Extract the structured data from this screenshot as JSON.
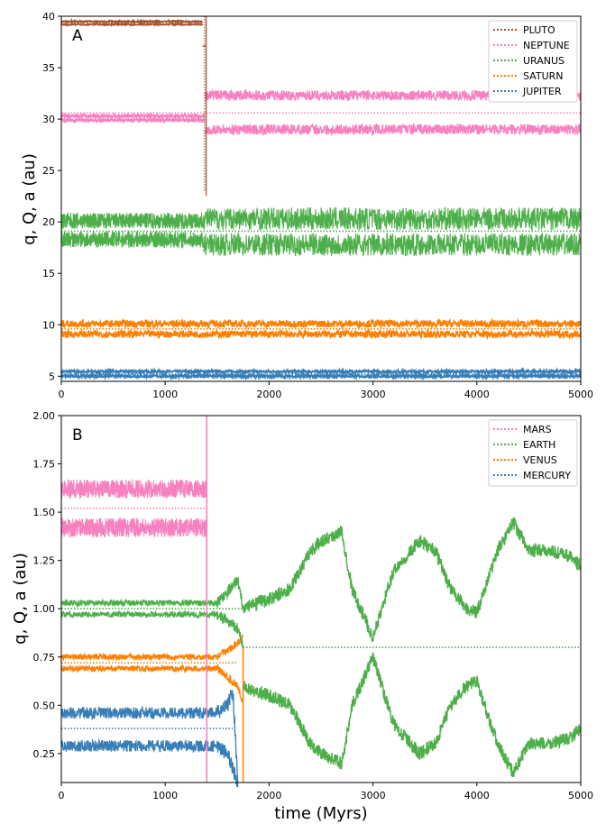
{
  "colors": {
    "pluto": "#a0522d",
    "neptune": "#f781bf",
    "uranus": "#4daf4a",
    "saturn": "#ff7f00",
    "jupiter": "#377eb8",
    "mars": "#f781bf",
    "earth": "#4daf4a",
    "venus": "#ff7f00",
    "mercury": "#377eb8"
  },
  "chart_data": [
    {
      "type": "line",
      "panel_label": "A",
      "xlabel": "",
      "ylabel": "q, Q, a (au)",
      "xlim": [
        0,
        5000
      ],
      "ylim": [
        4.5,
        40
      ],
      "xticks": [
        "0",
        "1000",
        "2000",
        "3000",
        "4000",
        "5000"
      ],
      "yticks": [
        "5",
        "10",
        "15",
        "20",
        "25",
        "30",
        "35",
        "40"
      ],
      "legend_position": "top-right",
      "legend": [
        "PLUTO",
        "NEPTUNE",
        "URANUS",
        "SATURN",
        "JUPITER"
      ],
      "series": [
        {
          "name": "PLUTO",
          "color_key": "pluto",
          "a": 39.4,
          "q_before": 39.2,
          "Q_before": 39.5,
          "ejected_at": 1420,
          "drop_to": 37.1,
          "drop_at": 1360
        },
        {
          "name": "NEPTUNE",
          "color_key": "neptune",
          "a": 30.6,
          "q_before": 29.9,
          "Q_before": 30.3,
          "q_after": 29.0,
          "Q_after": 32.3,
          "change_at": 1380
        },
        {
          "name": "URANUS",
          "color_key": "uranus",
          "a": 19.1,
          "q_before": 18.3,
          "Q_before": 20.1,
          "q_after": 17.2,
          "Q_after": 20.9,
          "change_at": 1370
        },
        {
          "name": "SATURN",
          "color_key": "saturn",
          "a": 9.6,
          "q_before": 9.1,
          "Q_before": 10.1,
          "q_after": 9.1,
          "Q_after": 10.1
        },
        {
          "name": "JUPITER",
          "color_key": "jupiter",
          "a": 5.2,
          "q_before": 5.0,
          "Q_before": 5.45
        }
      ]
    },
    {
      "type": "line",
      "panel_label": "B",
      "xlabel": "time (Myrs)",
      "ylabel": "q, Q, a (au)",
      "xlim": [
        0,
        5000
      ],
      "ylim": [
        0.1,
        2.0
      ],
      "xticks": [
        "0",
        "1000",
        "2000",
        "3000",
        "4000",
        "5000"
      ],
      "yticks": [
        "0.25",
        "0.50",
        "0.75",
        "1.00",
        "1.25",
        "1.50",
        "1.75",
        "2.00"
      ],
      "legend_position": "top-right",
      "legend": [
        "MARS",
        "EARTH",
        "VENUS",
        "MERCURY"
      ],
      "series": [
        {
          "name": "MARS",
          "color_key": "mars",
          "a": 1.52,
          "q_before": 1.42,
          "Q_before": 1.62,
          "ejected_at": 1400
        },
        {
          "name": "EARTH",
          "color_key": "earth",
          "a_before": 1.0,
          "q_before": 0.97,
          "Q_before": 1.03,
          "a_after": 0.8,
          "merge_at": 1750,
          "Q_after_path": [
            [
              1750,
              1.0
            ],
            [
              2000,
              1.05
            ],
            [
              2200,
              1.1
            ],
            [
              2400,
              1.3
            ],
            [
              2500,
              1.35
            ],
            [
              2700,
              1.4
            ],
            [
              2800,
              1.1
            ],
            [
              3000,
              0.85
            ],
            [
              3200,
              1.2
            ],
            [
              3450,
              1.35
            ],
            [
              3600,
              1.3
            ],
            [
              3750,
              1.1
            ],
            [
              3900,
              1.0
            ],
            [
              4000,
              0.98
            ],
            [
              4200,
              1.3
            ],
            [
              4350,
              1.45
            ],
            [
              4500,
              1.3
            ],
            [
              4700,
              1.3
            ],
            [
              4900,
              1.27
            ],
            [
              5000,
              1.22
            ]
          ],
          "q_after_path": [
            [
              1750,
              0.6
            ],
            [
              2000,
              0.55
            ],
            [
              2200,
              0.5
            ],
            [
              2400,
              0.3
            ],
            [
              2500,
              0.25
            ],
            [
              2700,
              0.2
            ],
            [
              2800,
              0.5
            ],
            [
              3000,
              0.75
            ],
            [
              3200,
              0.4
            ],
            [
              3450,
              0.25
            ],
            [
              3600,
              0.3
            ],
            [
              3750,
              0.5
            ],
            [
              3900,
              0.6
            ],
            [
              4000,
              0.62
            ],
            [
              4200,
              0.3
            ],
            [
              4350,
              0.15
            ],
            [
              4500,
              0.3
            ],
            [
              4700,
              0.3
            ],
            [
              4900,
              0.33
            ],
            [
              5000,
              0.38
            ]
          ]
        },
        {
          "name": "VENUS",
          "color_key": "venus",
          "a": 0.72,
          "q_before": 0.69,
          "Q_before": 0.75,
          "merge_at": 1750
        },
        {
          "name": "MERCURY",
          "color_key": "mercury",
          "a": 0.38,
          "q_before": 0.29,
          "Q_before": 0.46,
          "ejected_at": 1700
        }
      ]
    }
  ]
}
